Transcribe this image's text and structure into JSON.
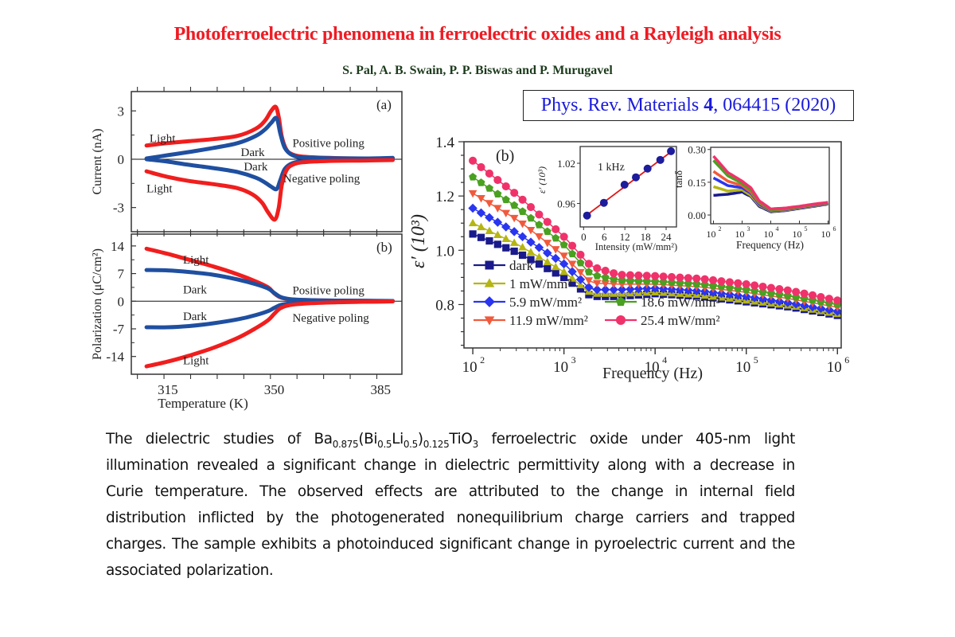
{
  "header": {
    "title": "Photoferroelectric phenomena in ferroelectric oxides and a Rayleigh analysis",
    "authors": "S. Pal, A. B. Swain, P. P. Biswas and P. Murugavel",
    "citation": {
      "journal": "Phys. Rev. Materials ",
      "volume": "4",
      "rest": ", 064415 (2020)"
    }
  },
  "abstract": {
    "part1": "The dielectric studies of Ba",
    "sub1": "0.875",
    "part2": "(Bi",
    "sub2": "0.5",
    "part3": "Li",
    "sub3": "0.5",
    "part4": ")",
    "sub4": "0.125",
    "part5": "TiO",
    "sub5": "3",
    "part6": " ferroelectric oxide under 405-nm light illumination revealed a significant change in dielectric permittivity along with a decrease in Curie temperature. The observed effects are attributed to the change in internal field distribution inflicted by the photogenerated nonequilibrium charge carriers and trapped charges. The sample exhibits a photoinduced significant change in pyroelectric current and the associated polarization."
  },
  "chart_data": [
    {
      "id": "current",
      "type": "line",
      "panel_label": "(a)",
      "ylabel": "Current (nA)",
      "xlabel": "",
      "xlim": [
        303,
        392
      ],
      "ylim": [
        -4.5,
        4.2
      ],
      "yticks": [
        3,
        0,
        -3
      ],
      "ytick_labels": [
        "3",
        "0",
        "-3"
      ],
      "annotations": [
        {
          "text": "Light",
          "x": 309,
          "y": 1.3
        },
        {
          "text": "Dark",
          "x": 339,
          "y": 0.45
        },
        {
          "text": "Positive poling",
          "x": 356,
          "y": 1.0
        },
        {
          "text": "Dark",
          "x": 340,
          "y": -0.45
        },
        {
          "text": "Negative poling",
          "x": 353,
          "y": -1.2
        },
        {
          "text": "Light",
          "x": 308,
          "y": -1.8
        }
      ],
      "series": [
        {
          "name": "Light positive poling",
          "color": "#f01e1e",
          "x": [
            308,
            315,
            322,
            330,
            338,
            344,
            347,
            349,
            350.5,
            351.5,
            352.5,
            354,
            356,
            360,
            370,
            380,
            389
          ],
          "y": [
            0.85,
            1.0,
            1.12,
            1.25,
            1.45,
            1.9,
            2.4,
            3.0,
            3.25,
            2.6,
            1.4,
            0.6,
            0.3,
            0.15,
            0.07,
            0.05,
            0.05
          ]
        },
        {
          "name": "Dark positive poling",
          "color": "#1f4fa0",
          "x": [
            308,
            315,
            322,
            330,
            338,
            344,
            347,
            349,
            350.8,
            352,
            353.5,
            356,
            360,
            370,
            380,
            389
          ],
          "y": [
            0.05,
            0.25,
            0.45,
            0.7,
            1.0,
            1.45,
            1.85,
            2.25,
            2.55,
            1.6,
            0.7,
            0.25,
            0.1,
            0.06,
            0.05,
            0.08
          ]
        },
        {
          "name": "Dark negative poling",
          "color": "#1f4fa0",
          "x": [
            308,
            315,
            322,
            330,
            338,
            344,
            347,
            349,
            350.8,
            352,
            353.5,
            356,
            360,
            370,
            380,
            389
          ],
          "y": [
            0.0,
            -0.15,
            -0.35,
            -0.55,
            -0.8,
            -1.15,
            -1.45,
            -1.7,
            -1.85,
            -1.3,
            -0.6,
            -0.25,
            -0.12,
            -0.06,
            -0.04,
            -0.03
          ]
        },
        {
          "name": "Light negative poling",
          "color": "#f01e1e",
          "x": [
            308,
            315,
            322,
            330,
            338,
            343,
            346,
            348,
            350.2,
            351.5,
            352.5,
            354,
            356,
            360,
            370,
            380,
            389
          ],
          "y": [
            -0.75,
            -1.1,
            -1.35,
            -1.55,
            -1.8,
            -2.2,
            -2.7,
            -3.3,
            -3.75,
            -3.0,
            -1.6,
            -0.7,
            -0.35,
            -0.18,
            -0.1,
            -0.08,
            -0.05
          ]
        }
      ]
    },
    {
      "id": "polarization",
      "type": "line",
      "panel_label": "(b)",
      "ylabel": "Polarization (μC/cm²)",
      "xlabel": "Temperature (K)",
      "xlim": [
        303,
        392
      ],
      "ylim": [
        -18.5,
        17
      ],
      "yticks": [
        14,
        7,
        0,
        -7,
        -14
      ],
      "ytick_labels": [
        "14",
        "7",
        "0",
        "-7",
        "-14"
      ],
      "xticks": [
        315,
        350,
        385
      ],
      "xtick_labels": [
        "315",
        "350",
        "385"
      ],
      "annotations": [
        {
          "text": "Light",
          "x": 320,
          "y": 10.5
        },
        {
          "text": "Dark",
          "x": 320,
          "y": 3.0
        },
        {
          "text": "Positive poling",
          "x": 356,
          "y": 2.8
        },
        {
          "text": "Dark",
          "x": 320,
          "y": -3.8
        },
        {
          "text": "Negative poling",
          "x": 356,
          "y": -4.2
        },
        {
          "text": "Light",
          "x": 320,
          "y": -15.0
        }
      ],
      "series": [
        {
          "name": "Light positive poling",
          "color": "#f01e1e",
          "x": [
            308,
            315,
            322,
            330,
            338,
            344,
            348,
            350,
            352,
            355,
            360,
            370,
            380,
            389
          ],
          "y": [
            13.3,
            12.0,
            10.5,
            8.8,
            6.8,
            5.0,
            3.5,
            2.0,
            1.0,
            0.5,
            0.3,
            0.15,
            0.1,
            0.05
          ]
        },
        {
          "name": "Dark positive poling",
          "color": "#1f4fa0",
          "x": [
            308,
            315,
            322,
            330,
            338,
            344,
            348,
            350,
            352,
            355,
            360,
            370,
            380,
            389
          ],
          "y": [
            7.9,
            7.8,
            7.4,
            6.7,
            5.5,
            4.3,
            3.2,
            2.1,
            1.1,
            0.55,
            0.3,
            0.15,
            0.1,
            0.05
          ]
        },
        {
          "name": "Dark negative poling",
          "color": "#1f4fa0",
          "x": [
            308,
            315,
            322,
            330,
            338,
            344,
            348,
            350,
            352,
            355,
            360,
            370,
            380,
            389
          ],
          "y": [
            -6.6,
            -6.6,
            -6.3,
            -5.6,
            -4.6,
            -3.5,
            -2.5,
            -1.7,
            -1.0,
            -0.6,
            -0.35,
            -0.2,
            -0.1,
            -0.05
          ]
        },
        {
          "name": "Light negative poling",
          "color": "#f01e1e",
          "x": [
            308,
            315,
            322,
            330,
            338,
            344,
            348,
            350,
            352,
            355,
            360,
            370,
            380,
            389
          ],
          "y": [
            -16.5,
            -15.3,
            -13.8,
            -11.8,
            -9.3,
            -6.8,
            -4.8,
            -3.2,
            -1.8,
            -1.0,
            -0.6,
            -0.3,
            -0.15,
            -0.05
          ]
        }
      ]
    },
    {
      "id": "permittivity",
      "type": "scatter",
      "panel_label": "(b)",
      "xlabel": "Frequency (Hz)",
      "ylabel": "ε′ (10³)",
      "xscale": "log",
      "xlim": [
        80,
        1100000
      ],
      "ylim": [
        0.64,
        1.4
      ],
      "yticks": [
        1.4,
        1.2,
        1.0,
        0.8
      ],
      "ytick_labels": [
        "1.4",
        "1.2",
        "1.0",
        "0.8"
      ],
      "xticks": [
        100,
        1000,
        10000,
        100000,
        1000000
      ],
      "xtick_labels": [
        "10",
        "10",
        "10",
        "10",
        "10"
      ],
      "xtick_exponents": [
        "2",
        "3",
        "4",
        "5",
        "6"
      ],
      "legend_position": "bottom-left",
      "x_log10": [
        2,
        2.5,
        3,
        3.3,
        3.6,
        4,
        4.5,
        5,
        5.5,
        6
      ],
      "series": [
        {
          "name": "dark",
          "marker": "square",
          "color": "#1a1a8c",
          "values": [
            1.06,
            0.99,
            0.9,
            0.83,
            0.83,
            0.84,
            0.83,
            0.81,
            0.79,
            0.76
          ]
        },
        {
          "name": "1 mW/mm²",
          "marker": "triangle-up",
          "color": "#b5b514",
          "values": [
            1.1,
            1.02,
            0.92,
            0.84,
            0.84,
            0.845,
            0.835,
            0.815,
            0.795,
            0.765
          ]
        },
        {
          "name": "5.9 mW/mm²",
          "marker": "diamond",
          "color": "#2a35f0",
          "values": [
            1.155,
            1.06,
            0.95,
            0.855,
            0.855,
            0.86,
            0.85,
            0.83,
            0.805,
            0.775
          ]
        },
        {
          "name": "11.9 mW/mm²",
          "marker": "triangle-down",
          "color": "#f05a3c",
          "values": [
            1.21,
            1.11,
            0.98,
            0.88,
            0.875,
            0.875,
            0.865,
            0.845,
            0.82,
            0.79
          ]
        },
        {
          "name": "18.6 mW/mm²",
          "marker": "pentagon",
          "color": "#4aa020",
          "values": [
            1.27,
            1.155,
            1.02,
            0.91,
            0.89,
            0.885,
            0.875,
            0.855,
            0.83,
            0.8
          ]
        },
        {
          "name": "25.4 mW/mm²",
          "marker": "circle",
          "color": "#f0326a",
          "values": [
            1.33,
            1.2,
            1.05,
            0.94,
            0.91,
            0.905,
            0.895,
            0.875,
            0.85,
            0.815
          ]
        }
      ]
    },
    {
      "id": "inset-intensity",
      "type": "scatter",
      "panel_label": "1 kHz",
      "xlabel": "Intensity (mW/mm²)",
      "ylabel": "ε′ (10³)",
      "xlim": [
        -1,
        27
      ],
      "ylim": [
        0.925,
        1.045
      ],
      "xticks": [
        0,
        6,
        12,
        18,
        24
      ],
      "xtick_labels": [
        "0",
        "6",
        "12",
        "18",
        "24"
      ],
      "yticks": [
        1.02,
        0.96
      ],
      "ytick_labels": [
        "1.02",
        "0.96"
      ],
      "x": [
        1,
        5.9,
        11.9,
        15.2,
        18.6,
        22.3,
        25.4
      ],
      "values": [
        0.942,
        0.961,
        0.988,
        0.999,
        1.012,
        1.025,
        1.038
      ],
      "fit_line": {
        "x": [
          1,
          25.4
        ],
        "y": [
          0.943,
          1.037
        ],
        "color": "#e01818"
      },
      "marker_color": "#1c1c9c"
    },
    {
      "id": "inset-tand",
      "type": "line",
      "xlabel": "Frequency (Hz)",
      "ylabel": "tanδ",
      "xscale": "log",
      "xlim": [
        80,
        1100000
      ],
      "ylim": [
        -0.04,
        0.31
      ],
      "yticks": [
        0.3,
        0.15,
        0.0
      ],
      "ytick_labels": [
        "0.30",
        "0.15",
        "0.00"
      ],
      "xticks": [
        100,
        1000,
        10000,
        100000,
        1000000
      ],
      "xtick_labels": [
        "10",
        "10",
        "10",
        "10",
        "10"
      ],
      "xtick_exponents": [
        "2",
        "3",
        "4",
        "5",
        "6"
      ],
      "x_log10": [
        2,
        2.5,
        3,
        3.3,
        3.6,
        4,
        4.5,
        5,
        5.5,
        6
      ],
      "series": [
        {
          "name": "dark",
          "color": "#1a1a8c",
          "values": [
            0.09,
            0.095,
            0.105,
            0.085,
            0.04,
            0.015,
            0.02,
            0.03,
            0.04,
            0.05
          ]
        },
        {
          "name": "1 mW/mm²",
          "color": "#b5b514",
          "values": [
            0.13,
            0.11,
            0.115,
            0.09,
            0.045,
            0.018,
            0.022,
            0.032,
            0.042,
            0.052
          ]
        },
        {
          "name": "5.9 mW/mm²",
          "color": "#2a35f0",
          "values": [
            0.17,
            0.135,
            0.125,
            0.1,
            0.05,
            0.02,
            0.024,
            0.034,
            0.044,
            0.054
          ]
        },
        {
          "name": "11.9 mW/mm²",
          "color": "#f05a3c",
          "values": [
            0.2,
            0.155,
            0.135,
            0.105,
            0.055,
            0.022,
            0.026,
            0.036,
            0.046,
            0.056
          ]
        },
        {
          "name": "18.6 mW/mm²",
          "color": "#4aa020",
          "values": [
            0.25,
            0.18,
            0.145,
            0.115,
            0.06,
            0.024,
            0.028,
            0.038,
            0.048,
            0.057
          ]
        },
        {
          "name": "25.4 mW/mm²",
          "color": "#f0326a",
          "values": [
            0.27,
            0.195,
            0.155,
            0.125,
            0.065,
            0.028,
            0.032,
            0.04,
            0.05,
            0.058
          ]
        }
      ]
    }
  ]
}
